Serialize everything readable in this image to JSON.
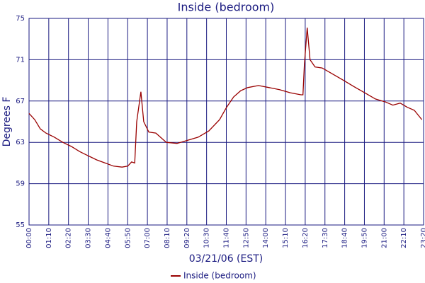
{
  "chart_data": {
    "type": "line",
    "title": "Inside (bedroom)",
    "xlabel": "03/21/06 (EST)",
    "ylabel": "Degrees F",
    "x": [
      0,
      20,
      40,
      60,
      90,
      120,
      150,
      180,
      210,
      240,
      270,
      300,
      330,
      350,
      364,
      375,
      382,
      397,
      407,
      425,
      450,
      487,
      525,
      563,
      600,
      638,
      676,
      701,
      726,
      751,
      776,
      814,
      852,
      889,
      927,
      965,
      972,
      977,
      987,
      997,
      1015,
      1040,
      1078,
      1116,
      1153,
      1191,
      1229,
      1266,
      1291,
      1317,
      1342,
      1367,
      1394
    ],
    "series": [
      {
        "name": "Inside (bedroom)",
        "color": "#990000",
        "values": [
          65.8,
          65.2,
          64.3,
          63.9,
          63.5,
          63.0,
          62.6,
          62.1,
          61.7,
          61.3,
          61.0,
          60.7,
          60.6,
          60.7,
          61.1,
          61.0,
          65.0,
          67.9,
          65.0,
          64.0,
          63.9,
          63.0,
          62.9,
          63.2,
          63.5,
          64.1,
          65.2,
          66.4,
          67.4,
          68.0,
          68.3,
          68.5,
          68.3,
          68.1,
          67.8,
          67.6,
          67.6,
          70.5,
          74.1,
          71.0,
          70.3,
          70.2,
          69.6,
          69.0,
          68.4,
          67.8,
          67.2,
          66.9,
          66.6,
          66.8,
          66.4,
          66.1,
          65.2
        ]
      }
    ],
    "xlim": [
      0,
      1400
    ],
    "xticks": [
      {
        "value": 0,
        "label": "00:00"
      },
      {
        "value": 70,
        "label": "01:10"
      },
      {
        "value": 140,
        "label": "02:20"
      },
      {
        "value": 210,
        "label": "03:30"
      },
      {
        "value": 280,
        "label": "04:40"
      },
      {
        "value": 350,
        "label": "05:50"
      },
      {
        "value": 420,
        "label": "07:00"
      },
      {
        "value": 490,
        "label": "08:10"
      },
      {
        "value": 560,
        "label": "09:20"
      },
      {
        "value": 630,
        "label": "10:30"
      },
      {
        "value": 700,
        "label": "11:40"
      },
      {
        "value": 770,
        "label": "12:50"
      },
      {
        "value": 840,
        "label": "14:00"
      },
      {
        "value": 910,
        "label": "15:10"
      },
      {
        "value": 980,
        "label": "16:20"
      },
      {
        "value": 1050,
        "label": "17:30"
      },
      {
        "value": 1120,
        "label": "18:40"
      },
      {
        "value": 1190,
        "label": "19:50"
      },
      {
        "value": 1260,
        "label": "21:00"
      },
      {
        "value": 1330,
        "label": "22:10"
      },
      {
        "value": 1400,
        "label": "23:20"
      }
    ],
    "ylim": [
      55,
      75
    ],
    "yticks": [
      55,
      59,
      63,
      67,
      71,
      75
    ],
    "grid": true,
    "legend": "bottom"
  }
}
